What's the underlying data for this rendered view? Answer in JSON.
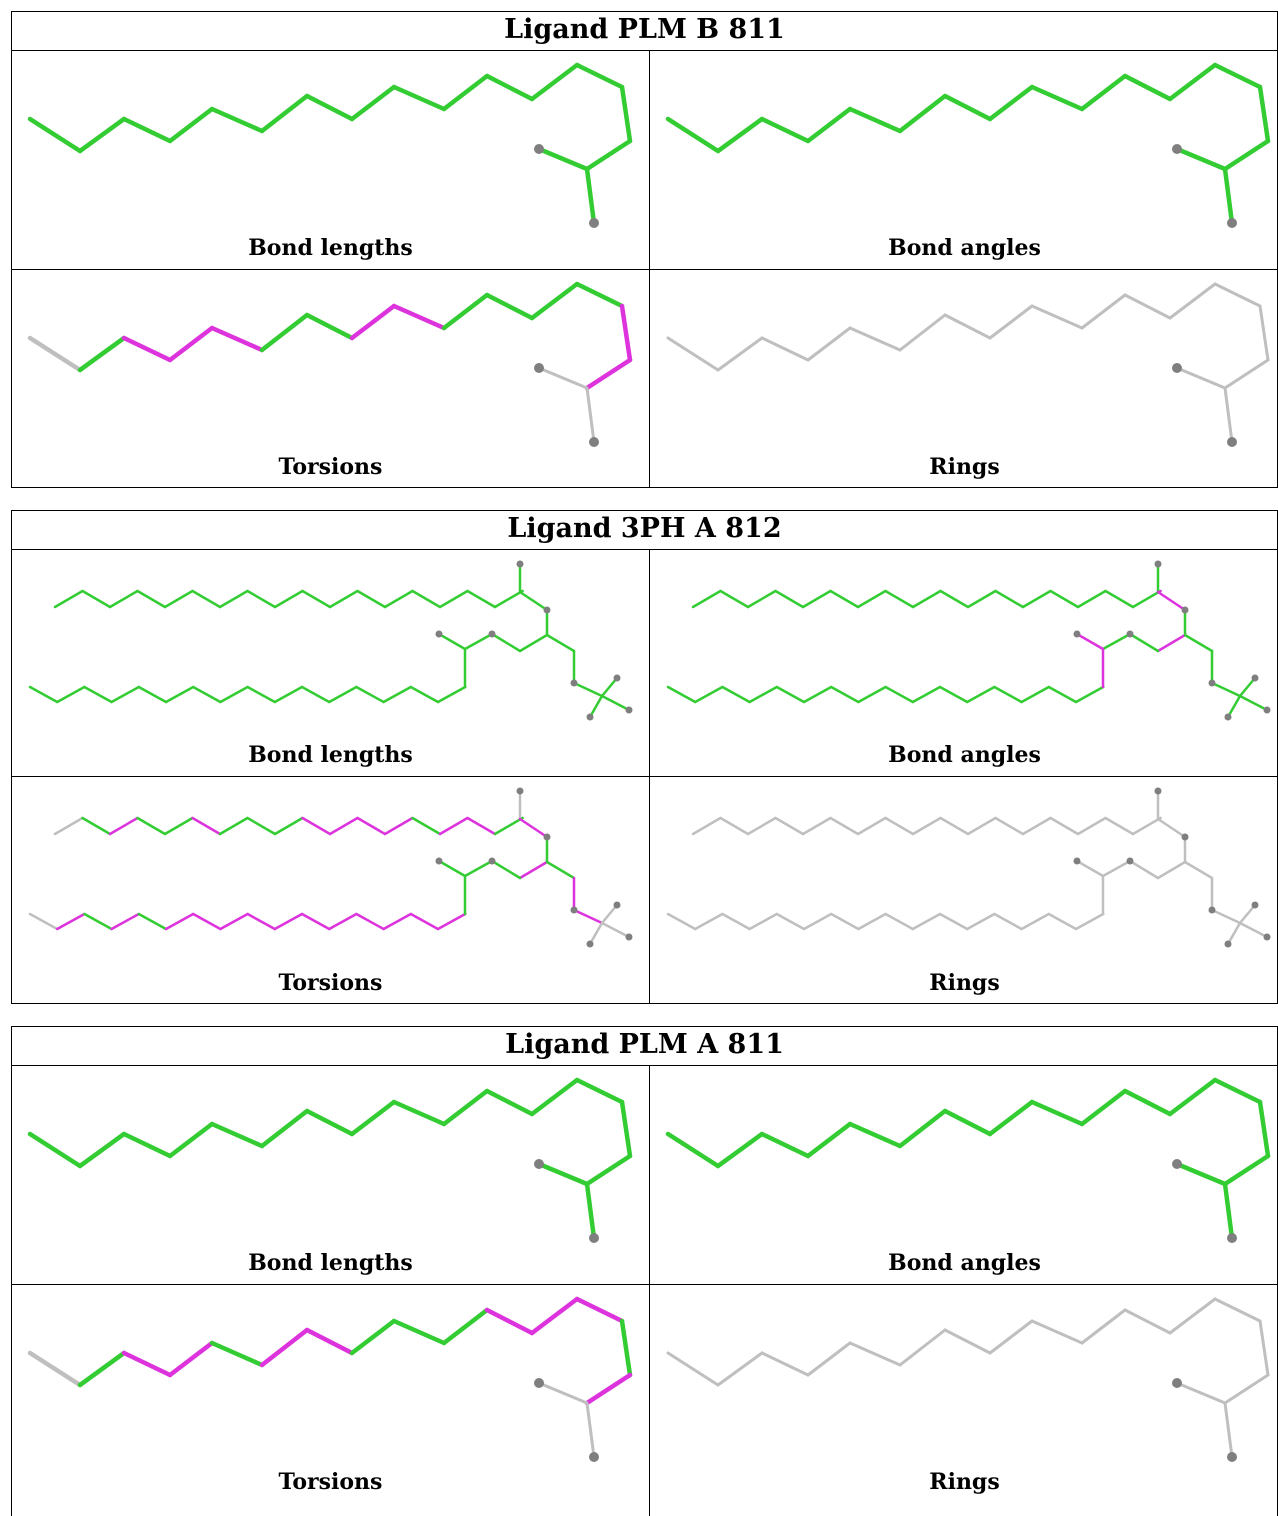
{
  "colors": {
    "good": "#33cc33",
    "bad": "#dd33dd",
    "na": "#bfbfbf",
    "atom": "#7f7f7f"
  },
  "blocks": [
    {
      "title": "Ligand PLM B 811",
      "molecule": "plm",
      "panels": [
        {
          "label": "Bond lengths",
          "scheme": "green"
        },
        {
          "label": "Bond angles",
          "scheme": "green"
        },
        {
          "label": "Torsions",
          "scheme": "torsionB"
        },
        {
          "label": "Rings",
          "scheme": "grey"
        }
      ]
    },
    {
      "title": "Ligand 3PH A 812",
      "molecule": "3ph",
      "panels": [
        {
          "label": "Bond lengths",
          "scheme": "green"
        },
        {
          "label": "Bond angles",
          "scheme": "angles3ph"
        },
        {
          "label": "Torsions",
          "scheme": "torsion3ph"
        },
        {
          "label": "Rings",
          "scheme": "grey"
        }
      ]
    },
    {
      "title": "Ligand PLM A 811",
      "molecule": "plm",
      "panels": [
        {
          "label": "Bond lengths",
          "scheme": "green"
        },
        {
          "label": "Bond angles",
          "scheme": "green"
        },
        {
          "label": "Torsions",
          "scheme": "torsionA"
        },
        {
          "label": "Rings",
          "scheme": "grey"
        }
      ]
    }
  ]
}
